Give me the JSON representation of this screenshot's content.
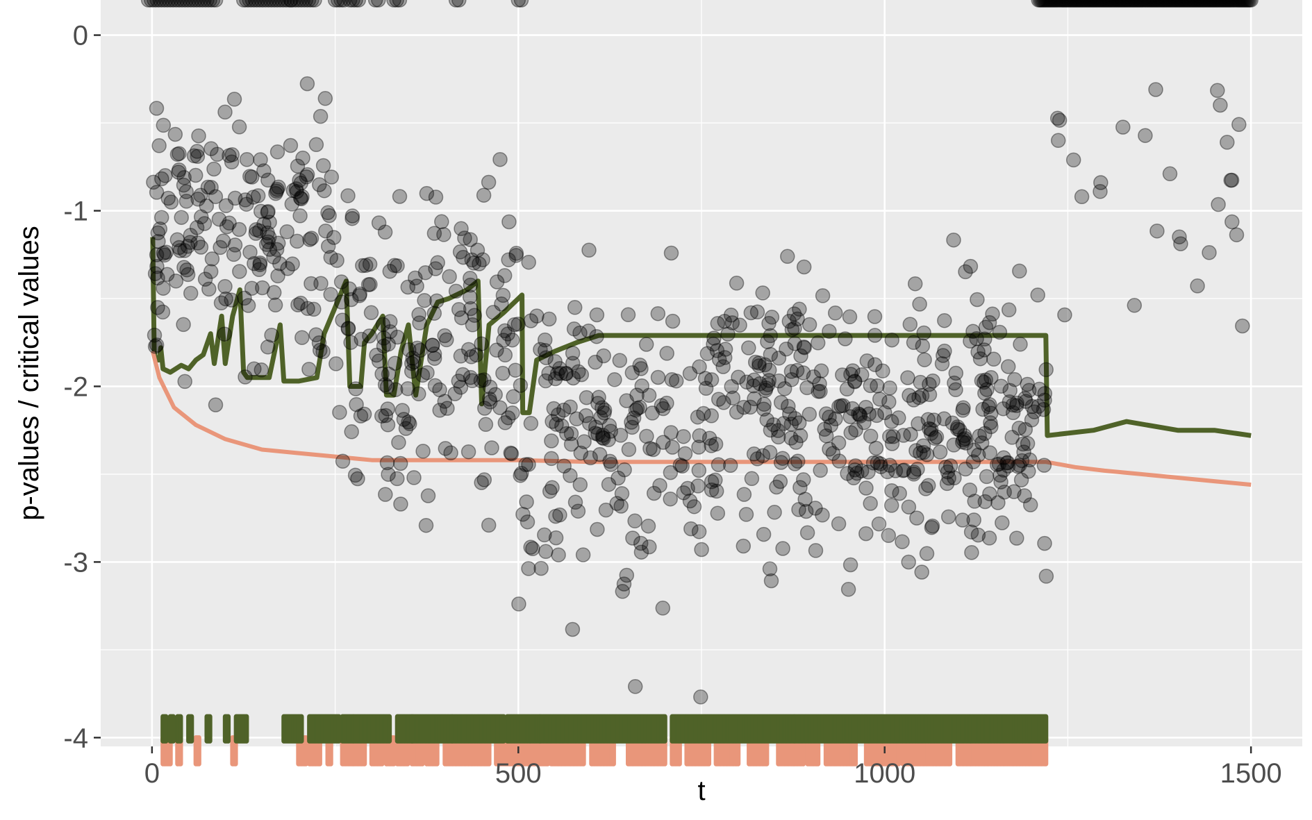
{
  "chart_data": {
    "type": "scatter",
    "title": "",
    "xlabel": "t",
    "ylabel": "p-values / critical values",
    "xlim": [
      -70,
      1570
    ],
    "ylim": [
      -4.05,
      0.2
    ],
    "x_ticks": [
      0,
      500,
      1000,
      1500
    ],
    "x_tick_labels": [
      "0",
      "500",
      "1000",
      "1500"
    ],
    "y_ticks": [
      0,
      -1,
      -2,
      -3,
      -4
    ],
    "y_tick_labels": [
      "0",
      "-1",
      "-2",
      "-3",
      "-4"
    ],
    "grid": true,
    "legend": "none",
    "colors": {
      "panel": "#ebebeb",
      "grid": "#ffffff",
      "points": "#000000",
      "green_series": "#4f6228",
      "salmon_series": "#e9967a",
      "tick_text": "#4d4d4d"
    },
    "rejection_row_y": 0.2,
    "rejections_top": {
      "description": "points drawn at the top edge (p-value = 1)",
      "ranges": [
        [
          -5,
          90
        ],
        [
          125,
          190
        ],
        [
          190,
          225
        ],
        [
          250,
          265
        ],
        [
          270,
          285
        ],
        [
          305,
          310
        ],
        [
          330,
          340
        ],
        [
          415,
          420
        ],
        [
          500,
          505
        ],
        [
          1210,
          1500
        ]
      ]
    },
    "series": [
      {
        "kind": "line",
        "color": "#4f6228",
        "points": [
          [
            1,
            -1.15
          ],
          [
            3,
            -1.8
          ],
          [
            5,
            -1.85
          ],
          [
            10,
            -1.85
          ],
          [
            12,
            -1.78
          ],
          [
            15,
            -1.9
          ],
          [
            25,
            -1.92
          ],
          [
            40,
            -1.88
          ],
          [
            50,
            -1.9
          ],
          [
            60,
            -1.85
          ],
          [
            70,
            -1.82
          ],
          [
            80,
            -1.7
          ],
          [
            85,
            -1.87
          ],
          [
            95,
            -1.6
          ],
          [
            100,
            -1.87
          ],
          [
            110,
            -1.6
          ],
          [
            120,
            -1.45
          ],
          [
            125,
            -1.92
          ],
          [
            130,
            -1.95
          ],
          [
            150,
            -1.95
          ],
          [
            160,
            -1.95
          ],
          [
            175,
            -1.65
          ],
          [
            180,
            -1.97
          ],
          [
            200,
            -1.97
          ],
          [
            225,
            -1.95
          ],
          [
            235,
            -1.7
          ],
          [
            255,
            -1.5
          ],
          [
            265,
            -1.4
          ],
          [
            270,
            -2.0
          ],
          [
            285,
            -2.0
          ],
          [
            290,
            -1.75
          ],
          [
            300,
            -1.7
          ],
          [
            315,
            -1.6
          ],
          [
            320,
            -2.05
          ],
          [
            330,
            -2.05
          ],
          [
            340,
            -1.8
          ],
          [
            350,
            -1.65
          ],
          [
            360,
            -2.05
          ],
          [
            375,
            -1.65
          ],
          [
            390,
            -1.52
          ],
          [
            405,
            -1.5
          ],
          [
            430,
            -1.45
          ],
          [
            445,
            -1.4
          ],
          [
            450,
            -2.1
          ],
          [
            460,
            -1.65
          ],
          [
            480,
            -1.58
          ],
          [
            500,
            -1.5
          ],
          [
            505,
            -1.48
          ],
          [
            506,
            -2.15
          ],
          [
            515,
            -2.15
          ],
          [
            525,
            -1.85
          ],
          [
            550,
            -1.8
          ],
          [
            580,
            -1.75
          ],
          [
            610,
            -1.71
          ],
          [
            1220,
            -1.71
          ],
          [
            1222,
            -2.28
          ],
          [
            1285,
            -2.25
          ],
          [
            1330,
            -2.2
          ],
          [
            1400,
            -2.25
          ],
          [
            1450,
            -2.25
          ],
          [
            1500,
            -2.28
          ]
        ]
      },
      {
        "kind": "line",
        "color": "#e9967a",
        "points": [
          [
            1,
            -1.8
          ],
          [
            10,
            -1.95
          ],
          [
            30,
            -2.12
          ],
          [
            60,
            -2.22
          ],
          [
            100,
            -2.3
          ],
          [
            150,
            -2.36
          ],
          [
            200,
            -2.38
          ],
          [
            250,
            -2.4
          ],
          [
            300,
            -2.42
          ],
          [
            350,
            -2.42
          ],
          [
            400,
            -2.42
          ],
          [
            500,
            -2.42
          ],
          [
            600,
            -2.43
          ],
          [
            700,
            -2.43
          ],
          [
            800,
            -2.43
          ],
          [
            900,
            -2.43
          ],
          [
            1000,
            -2.43
          ],
          [
            1100,
            -2.43
          ],
          [
            1220,
            -2.43
          ],
          [
            1260,
            -2.46
          ],
          [
            1300,
            -2.48
          ],
          [
            1350,
            -2.5
          ],
          [
            1400,
            -2.52
          ],
          [
            1450,
            -2.54
          ],
          [
            1500,
            -2.56
          ]
        ]
      }
    ],
    "rug_green": {
      "y_range": [
        -3.88,
        -4.02
      ],
      "ranges": [
        [
          15,
          20
        ],
        [
          25,
          30
        ],
        [
          35,
          40
        ],
        [
          50,
          55
        ],
        [
          75,
          80
        ],
        [
          100,
          105
        ],
        [
          115,
          130
        ],
        [
          180,
          205
        ],
        [
          215,
          255
        ],
        [
          260,
          325
        ],
        [
          335,
          355
        ],
        [
          355,
          410
        ],
        [
          410,
          480
        ],
        [
          485,
          530
        ],
        [
          530,
          700
        ],
        [
          710,
          1220
        ]
      ]
    },
    "rug_salmon": {
      "y_range": [
        -4.0,
        -4.15
      ],
      "ranges": [
        [
          15,
          25
        ],
        [
          35,
          40
        ],
        [
          60,
          65
        ],
        [
          110,
          115
        ],
        [
          200,
          210
        ],
        [
          215,
          230
        ],
        [
          240,
          245
        ],
        [
          260,
          290
        ],
        [
          300,
          315
        ],
        [
          320,
          330
        ],
        [
          335,
          350
        ],
        [
          355,
          370
        ],
        [
          375,
          390
        ],
        [
          400,
          460
        ],
        [
          470,
          540
        ],
        [
          545,
          590
        ],
        [
          600,
          630
        ],
        [
          650,
          700
        ],
        [
          710,
          720
        ],
        [
          730,
          760
        ],
        [
          770,
          800
        ],
        [
          815,
          840
        ],
        [
          855,
          890
        ],
        [
          895,
          910
        ],
        [
          920,
          960
        ],
        [
          975,
          1020
        ],
        [
          1025,
          1090
        ],
        [
          1100,
          1220
        ]
      ]
    }
  }
}
